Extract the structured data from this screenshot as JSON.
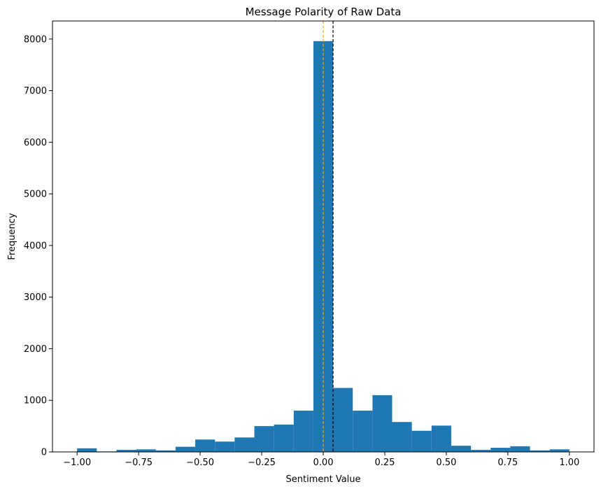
{
  "chart_data": {
    "type": "bar",
    "title": "Message Polarity of Raw Data",
    "xlabel": "Sentiment Value",
    "ylabel": "Frequency",
    "xlim": [
      -1.1,
      1.1
    ],
    "ylim": [
      0,
      8350
    ],
    "xticks": [
      -1.0,
      -0.75,
      -0.5,
      -0.25,
      0.0,
      0.25,
      0.5,
      0.75,
      1.0
    ],
    "xtick_labels": [
      "−1.00",
      "−0.75",
      "−0.50",
      "−0.25",
      "0.00",
      "0.25",
      "0.50",
      "0.75",
      "1.00"
    ],
    "yticks": [
      0,
      1000,
      2000,
      3000,
      4000,
      5000,
      6000,
      7000,
      8000
    ],
    "ytick_labels": [
      "0",
      "1000",
      "2000",
      "3000",
      "4000",
      "5000",
      "6000",
      "7000",
      "8000"
    ],
    "bin_edges": [
      -1.0,
      -0.92,
      -0.84,
      -0.76,
      -0.68,
      -0.6,
      -0.52,
      -0.44,
      -0.36,
      -0.28,
      -0.2,
      -0.12,
      -0.04,
      0.04,
      0.12,
      0.2,
      0.28,
      0.36,
      0.44,
      0.52,
      0.6,
      0.68,
      0.76,
      0.84,
      0.92,
      1.0
    ],
    "values": [
      70,
      10,
      40,
      50,
      30,
      100,
      240,
      200,
      280,
      500,
      530,
      800,
      7960,
      1240,
      800,
      1100,
      580,
      410,
      510,
      120,
      40,
      80,
      110,
      30,
      50
    ],
    "bar_color": "#1f77b4",
    "vlines": [
      {
        "name": "orange-dashed-line",
        "x": 0.0,
        "color": "#ffa500"
      },
      {
        "name": "black-dashed-line",
        "x": 0.04,
        "color": "#000000"
      }
    ]
  }
}
